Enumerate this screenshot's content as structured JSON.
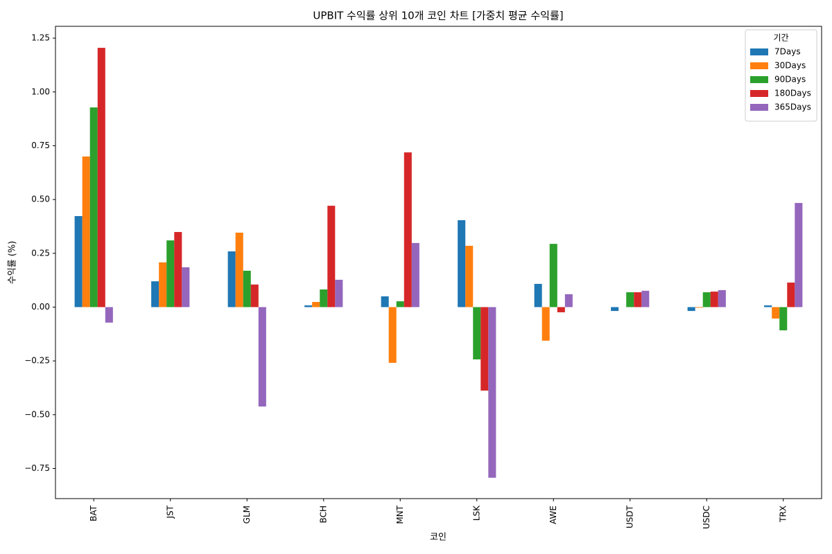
{
  "chart_data": {
    "type": "bar",
    "title": "UPBIT 수익률 상위 10개 코인 차트 [가중치 평균 수익률]",
    "x_label": "코인",
    "y_label": "수익률 (%)",
    "legend_title": "기간",
    "legend_position": "upper right",
    "categories": [
      "BAT",
      "JST",
      "GLM",
      "BCH",
      "MNT",
      "LSK",
      "AWE",
      "USDT",
      "USDC",
      "TRX"
    ],
    "series": [
      {
        "name": "7Days",
        "color": "#1f77b4",
        "values": [
          0.423,
          0.12,
          0.259,
          0.008,
          0.05,
          0.404,
          0.108,
          -0.018,
          -0.018,
          0.008
        ]
      },
      {
        "name": "30Days",
        "color": "#ff7f0e",
        "values": [
          0.7,
          0.208,
          0.346,
          0.024,
          -0.259,
          0.285,
          -0.156,
          0,
          -0.003,
          -0.053
        ]
      },
      {
        "name": "90Days",
        "color": "#2ca02c",
        "values": [
          0.928,
          0.31,
          0.169,
          0.082,
          0.027,
          -0.243,
          0.294,
          0.069,
          0.069,
          -0.108
        ]
      },
      {
        "name": "180Days",
        "color": "#d62728",
        "values": [
          1.205,
          0.349,
          0.105,
          0.471,
          0.719,
          -0.388,
          -0.024,
          0.069,
          0.072,
          0.114
        ]
      },
      {
        "name": "365Days",
        "color": "#9467bd",
        "values": [
          -0.072,
          0.185,
          -0.462,
          0.127,
          0.298,
          -0.793,
          0.06,
          0.076,
          0.079,
          0.484
        ]
      }
    ],
    "ylim": [
      -0.89,
      1.305
    ],
    "yticks": [
      {
        "value": -0.75,
        "label": "−0.75"
      },
      {
        "value": -0.5,
        "label": "−0.50"
      },
      {
        "value": -0.25,
        "label": "−0.25"
      },
      {
        "value": 0,
        "label": "0.00"
      },
      {
        "value": 0.25,
        "label": "0.25"
      },
      {
        "value": 0.5,
        "label": "0.50"
      },
      {
        "value": 0.75,
        "label": "0.75"
      },
      {
        "value": 1,
        "label": "1.00"
      },
      {
        "value": 1.25,
        "label": "1.25"
      }
    ],
    "grid": false
  }
}
